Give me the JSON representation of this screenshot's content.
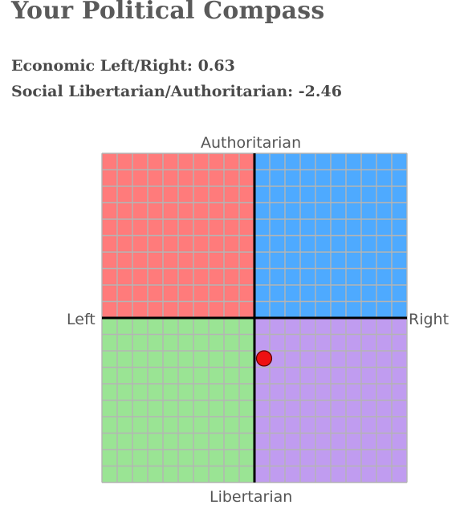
{
  "header": {
    "title": "Your Political Compass"
  },
  "results": {
    "economic_label": "Economic Left/Right:",
    "economic_value": "0.63",
    "social_label": "Social Libertarian/Authoritarian:",
    "social_value": "-2.46"
  },
  "chart_data": {
    "type": "scatter",
    "x_range": [
      -10,
      10
    ],
    "y_range": [
      -10,
      10
    ],
    "grid": true,
    "axis_labels": {
      "top": "Authoritarian",
      "bottom": "Libertarian",
      "left": "Left",
      "right": "Right"
    },
    "quadrant_colors": {
      "authoritarian_left": "#ff7b7b",
      "authoritarian_right": "#4eaaff",
      "libertarian_left": "#9ae494",
      "libertarian_right": "#c09cf0"
    },
    "point": {
      "x": 0.63,
      "y": -2.46,
      "color": "#ee1111"
    }
  }
}
